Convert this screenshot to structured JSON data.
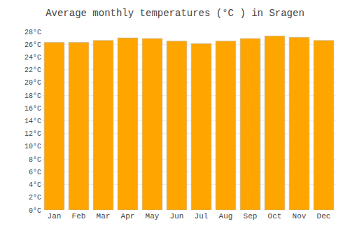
{
  "chart_data": {
    "type": "bar",
    "title": "Average monthly temperatures (°C ) in Sragen",
    "categories": [
      "Jan",
      "Feb",
      "Mar",
      "Apr",
      "May",
      "Jun",
      "Jul",
      "Aug",
      "Sep",
      "Oct",
      "Nov",
      "Dec"
    ],
    "values": [
      26.3,
      26.3,
      26.6,
      27.0,
      26.9,
      26.5,
      26.1,
      26.5,
      26.9,
      27.3,
      27.1,
      26.6
    ],
    "color": "#FFA500",
    "ylim": [
      0,
      28
    ],
    "yticks": [
      {
        "value": 0,
        "label": "0°C"
      },
      {
        "value": 2,
        "label": "2°C"
      },
      {
        "value": 4,
        "label": "4°C"
      },
      {
        "value": 6,
        "label": "6°C"
      },
      {
        "value": 8,
        "label": "8°C"
      },
      {
        "value": 10,
        "label": "10°C"
      },
      {
        "value": 12,
        "label": "12°C"
      },
      {
        "value": 14,
        "label": "14°C"
      },
      {
        "value": 16,
        "label": "16°C"
      },
      {
        "value": 18,
        "label": "18°C"
      },
      {
        "value": 20,
        "label": "20°C"
      },
      {
        "value": 22,
        "label": "22°C"
      },
      {
        "value": 24,
        "label": "24°C"
      },
      {
        "value": 26,
        "label": "26°C"
      },
      {
        "value": 28,
        "label": "28°C"
      }
    ],
    "grid": true
  }
}
